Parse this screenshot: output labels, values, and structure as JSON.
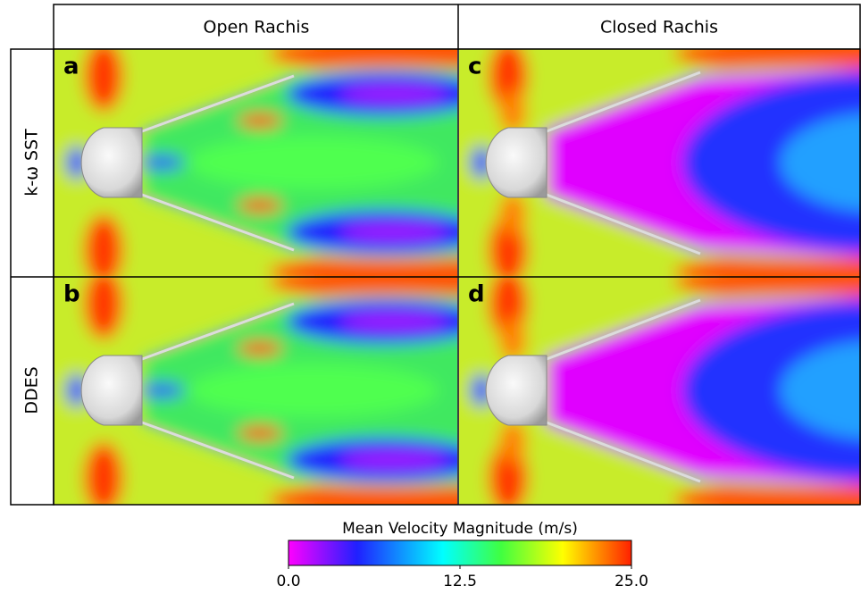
{
  "header": {
    "columns": [
      "Open Rachis",
      "Closed Rachis"
    ]
  },
  "rows": [
    "k-ω SST",
    "DDES"
  ],
  "panels": [
    {
      "letter": "a",
      "rachis": "open"
    },
    {
      "letter": "c",
      "rachis": "closed"
    },
    {
      "letter": "b",
      "rachis": "open"
    },
    {
      "letter": "d",
      "rachis": "closed"
    }
  ],
  "colorbar": {
    "title": "Mean Velocity Magnitude (m/s)",
    "ticks": [
      {
        "value": 0,
        "label": "0.0"
      },
      {
        "value": 12.5,
        "label": "12.5"
      },
      {
        "value": 25,
        "label": "25.0"
      }
    ]
  }
}
